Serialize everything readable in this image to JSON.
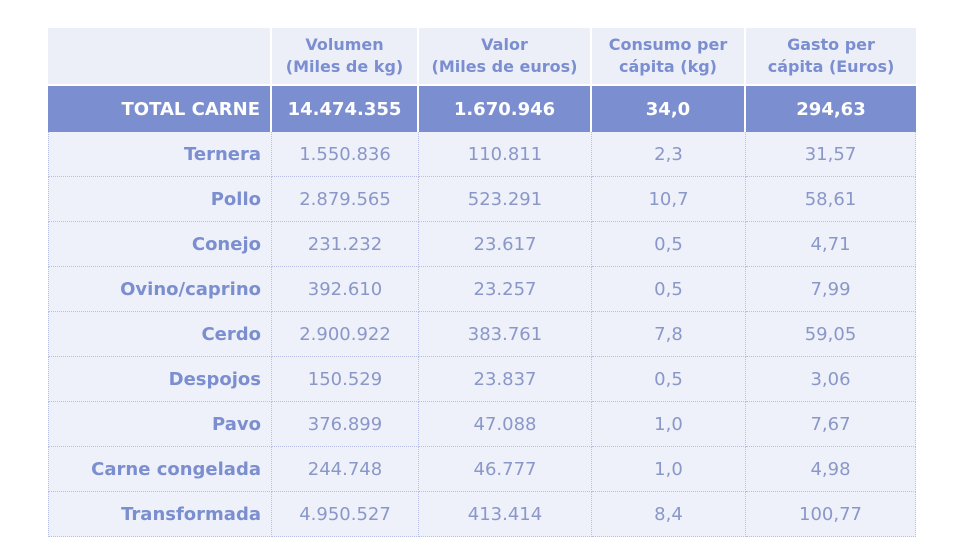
{
  "chart_data": {
    "type": "table",
    "columns": [
      "",
      "Volumen (Miles de kg)",
      "Valor (Miles de euros)",
      "Consumo per cápita (kg)",
      "Gasto per cápita (Euros)"
    ],
    "header": [
      {
        "line1": "",
        "line2": ""
      },
      {
        "line1": "Volumen",
        "line2": "(Miles de kg)"
      },
      {
        "line1": "Valor",
        "line2": "(Miles de euros)"
      },
      {
        "line1": "Consumo per",
        "line2": "cápita (kg)"
      },
      {
        "line1": "Gasto per",
        "line2": "cápita (Euros)"
      }
    ],
    "total": {
      "label": "TOTAL CARNE",
      "volumen": "14.474.355",
      "valor": "1.670.946",
      "consumo": "34,0",
      "gasto": "294,63"
    },
    "rows": [
      {
        "label": "Ternera",
        "volumen": "1.550.836",
        "valor": "110.811",
        "consumo": "2,3",
        "gasto": "31,57"
      },
      {
        "label": "Pollo",
        "volumen": "2.879.565",
        "valor": "523.291",
        "consumo": "10,7",
        "gasto": "58,61"
      },
      {
        "label": "Conejo",
        "volumen": "231.232",
        "valor": "23.617",
        "consumo": "0,5",
        "gasto": "4,71"
      },
      {
        "label": "Ovino/caprino",
        "volumen": "392.610",
        "valor": "23.257",
        "consumo": "0,5",
        "gasto": "7,99"
      },
      {
        "label": "Cerdo",
        "volumen": "2.900.922",
        "valor": "383.761",
        "consumo": "7,8",
        "gasto": "59,05"
      },
      {
        "label": "Despojos",
        "volumen": "150.529",
        "valor": "23.837",
        "consumo": "0,5",
        "gasto": "3,06"
      },
      {
        "label": "Pavo",
        "volumen": "376.899",
        "valor": "47.088",
        "consumo": "1,0",
        "gasto": "7,67"
      },
      {
        "label": "Carne congelada",
        "volumen": "244.748",
        "valor": "46.777",
        "consumo": "1,0",
        "gasto": "4,98"
      },
      {
        "label": "Transformada",
        "volumen": "4.950.527",
        "valor": "413.414",
        "consumo": "8,4",
        "gasto": "100,77"
      }
    ],
    "colors": {
      "accent": "#7b8ed0",
      "header_bg": "#eceff8",
      "row_bg": "#eef1f9",
      "row_text": "#8a97c9"
    }
  }
}
